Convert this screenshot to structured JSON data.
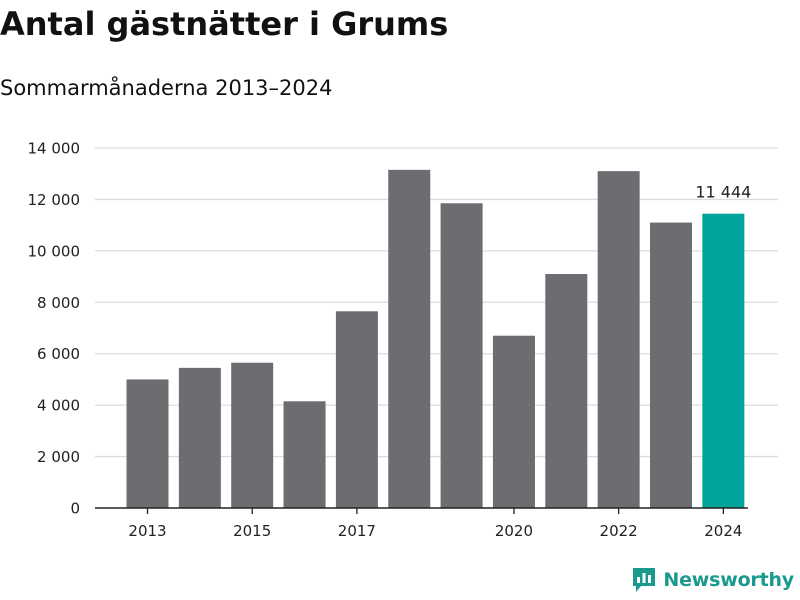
{
  "title": "Antal gästnätter i Grums",
  "subtitle": "Sommarmånaderna 2013–2024",
  "brand": {
    "name": "Newsworthy",
    "icon": "bar-chart-logo-icon"
  },
  "colors": {
    "bar": "#6d6c71",
    "highlight": "#00a49a",
    "grid": "#dcdcdc",
    "axis": "#222222",
    "brand": "#1a9a8f"
  },
  "chart_data": {
    "type": "bar",
    "title": "Antal gästnätter i Grums",
    "subtitle": "Sommarmånaderna 2013–2024",
    "xlabel": "",
    "ylabel": "",
    "categories": [
      "2013",
      "2014",
      "2015",
      "2016",
      "2017",
      "2018",
      "2019",
      "2020",
      "2021",
      "2022",
      "2023",
      "2024"
    ],
    "x_tick_labels": [
      "2013",
      "2015",
      "2017",
      "2020",
      "2022",
      "2024"
    ],
    "values": [
      5000,
      5450,
      5650,
      4150,
      7650,
      13150,
      11850,
      6700,
      9100,
      13100,
      11100,
      11444
    ],
    "highlight_index": 11,
    "data_labels": [
      {
        "index": 11,
        "text": "11 444"
      }
    ],
    "y_ticks": [
      {
        "value": 0,
        "label": "0"
      },
      {
        "value": 2000,
        "label": "2 000"
      },
      {
        "value": 4000,
        "label": "4 000"
      },
      {
        "value": 6000,
        "label": "6 000"
      },
      {
        "value": 8000,
        "label": "8 000"
      },
      {
        "value": 10000,
        "label": "10 000"
      },
      {
        "value": 12000,
        "label": "12 000"
      },
      {
        "value": 14000,
        "label": "14 000"
      }
    ],
    "ylim": [
      0,
      14000
    ],
    "grid": true,
    "legend": "none"
  }
}
